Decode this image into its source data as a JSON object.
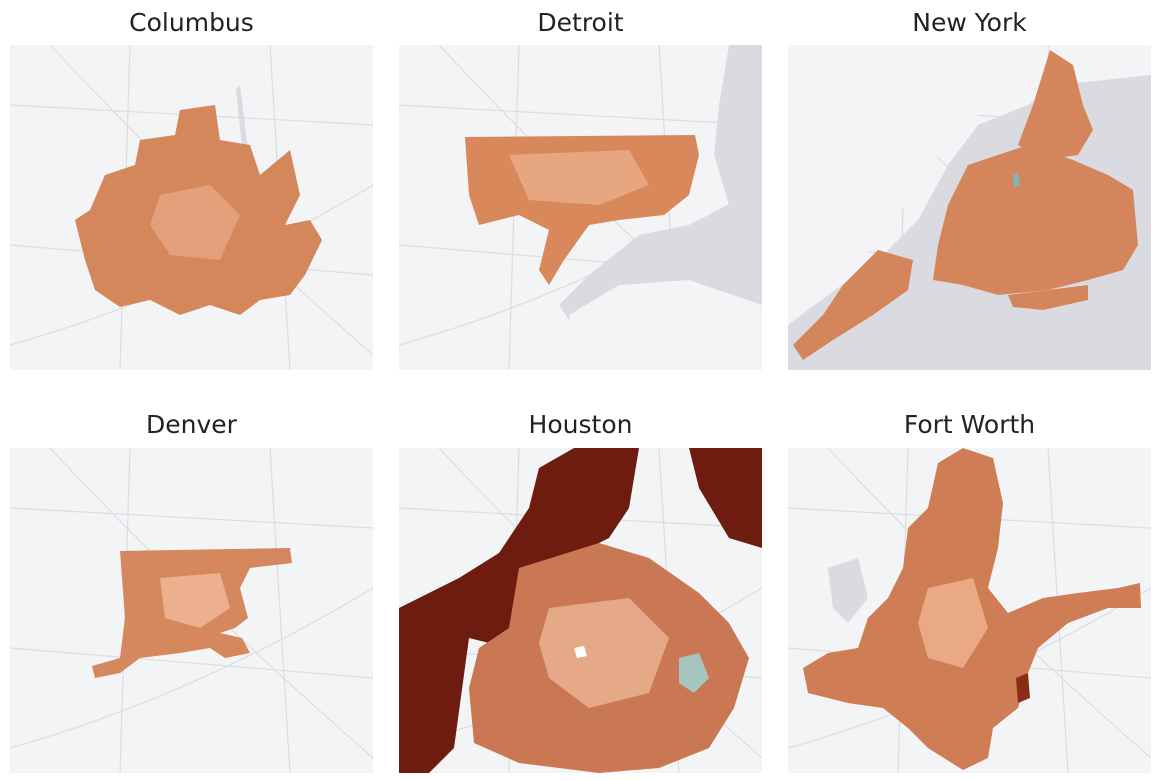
{
  "maps": [
    {
      "title": "Columbus"
    },
    {
      "title": "Detroit"
    },
    {
      "title": "New York"
    },
    {
      "title": "Denver"
    },
    {
      "title": "Houston"
    },
    {
      "title": "Fort Worth"
    }
  ]
}
